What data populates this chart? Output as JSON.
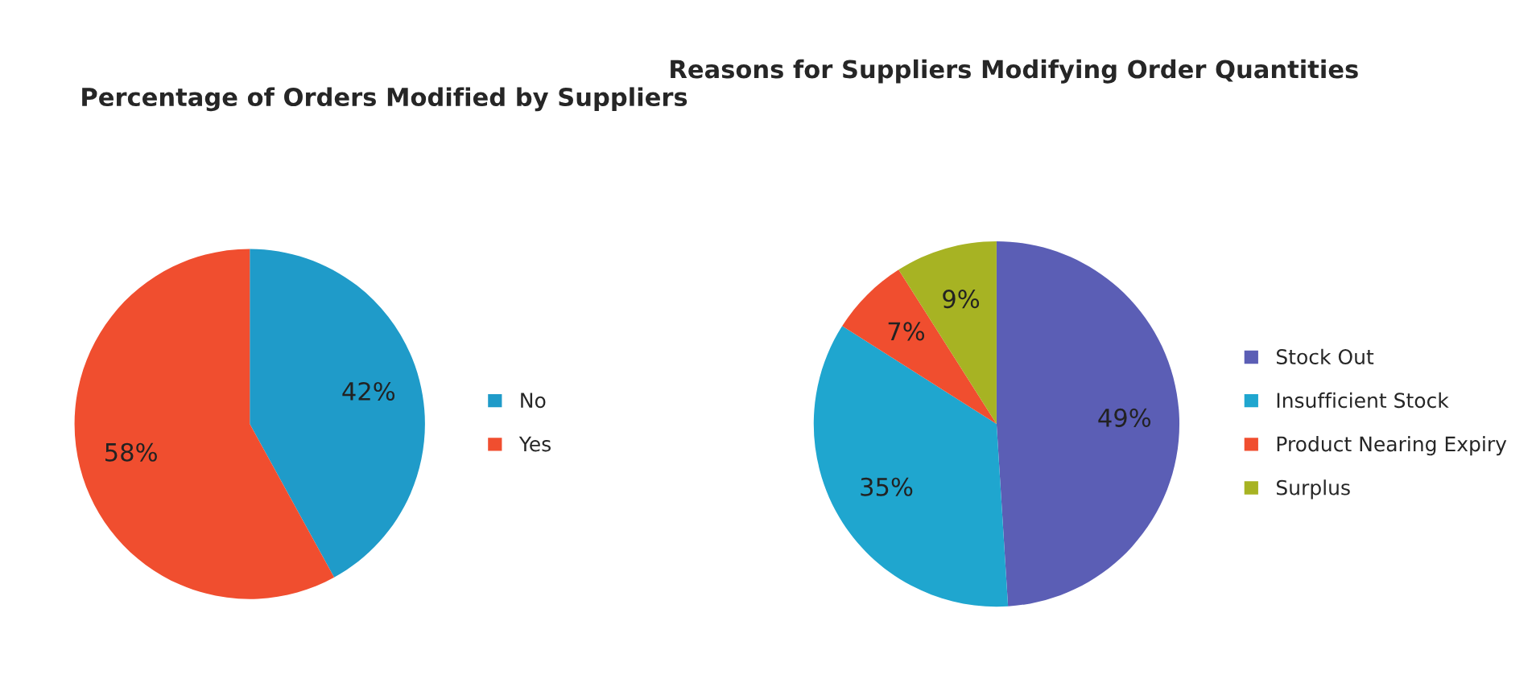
{
  "chart_data": [
    {
      "type": "pie",
      "title": "Percentage of Orders Modified by Suppliers",
      "categories": [
        "No",
        "Yes"
      ],
      "values": [
        42,
        58
      ],
      "colors": [
        "#1f9bc9",
        "#f04e2f"
      ],
      "value_labels": [
        "42%",
        "58%"
      ],
      "legend": "right"
    },
    {
      "type": "pie",
      "title": "Reasons for Suppliers Modifying Order Quantities",
      "categories": [
        "Stock Out",
        "Insufficient Stock",
        "Product Nearing Expiry",
        "Surplus"
      ],
      "values": [
        49,
        35,
        7,
        9
      ],
      "colors": [
        "#5b5eb5",
        "#1fa6cf",
        "#f04e2f",
        "#a7b323"
      ],
      "value_labels": [
        "49%",
        "35%",
        "7%",
        "9%"
      ],
      "legend": "right"
    }
  ]
}
